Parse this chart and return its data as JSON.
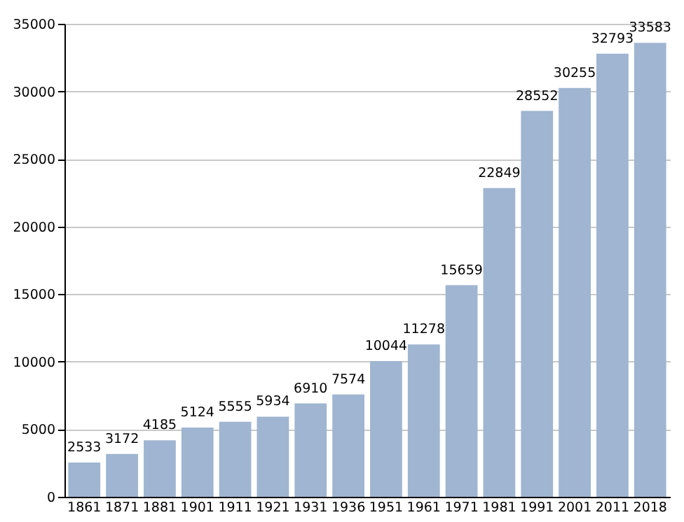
{
  "chart_data": {
    "type": "bar",
    "categories": [
      "1861",
      "1871",
      "1881",
      "1901",
      "1911",
      "1921",
      "1931",
      "1936",
      "1951",
      "1961",
      "1971",
      "1981",
      "1991",
      "2001",
      "2011",
      "2018"
    ],
    "values": [
      2533,
      3172,
      4185,
      5124,
      5555,
      5934,
      6910,
      7574,
      10044,
      11278,
      15659,
      22849,
      28552,
      30255,
      32793,
      33583
    ],
    "color": "#9fb5d1",
    "ylim": [
      0,
      35000
    ],
    "yticks": [
      0,
      5000,
      10000,
      15000,
      20000,
      25000,
      30000,
      35000
    ],
    "grid": "y",
    "data_labels": true
  }
}
